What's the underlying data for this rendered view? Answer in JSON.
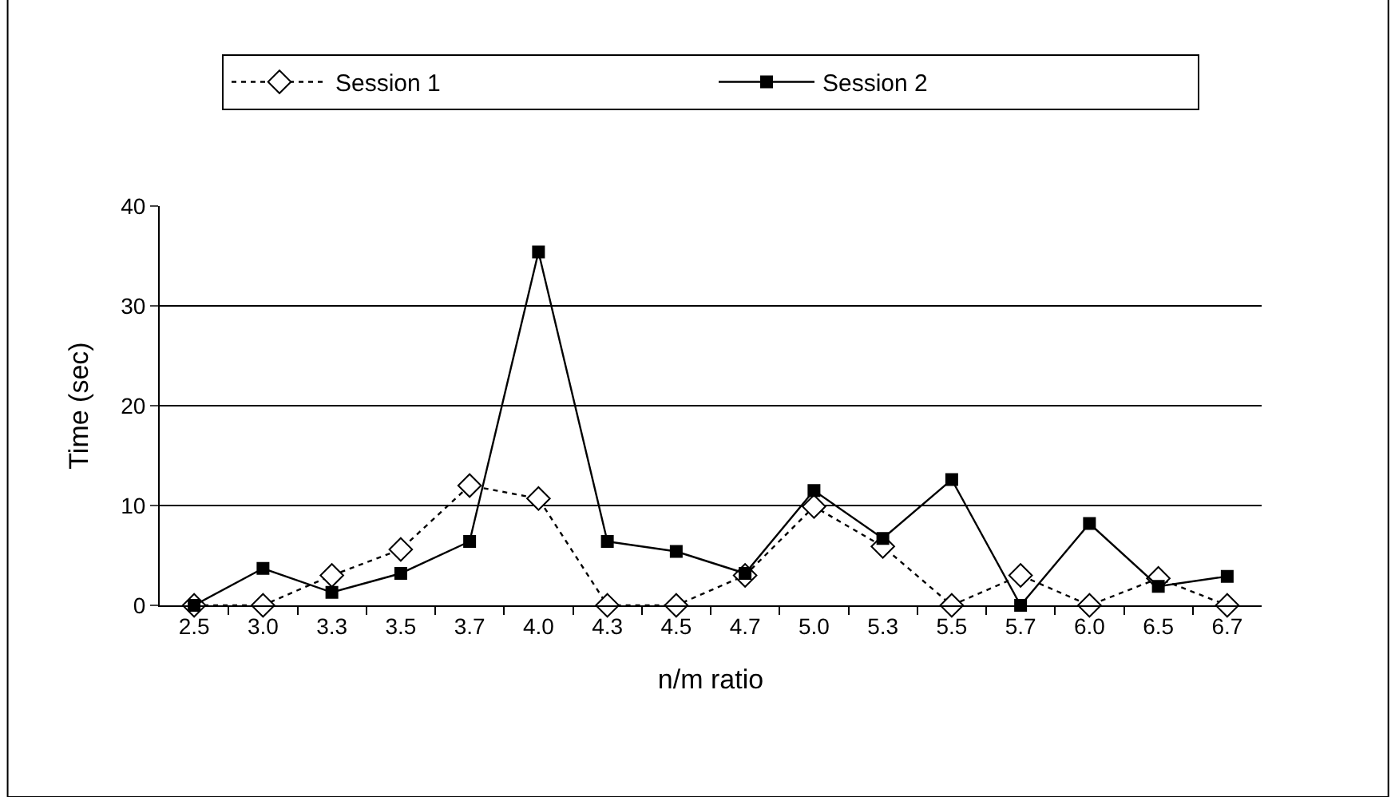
{
  "chart_data": {
    "type": "line",
    "xlabel": "n/m ratio",
    "ylabel": "Time (sec)",
    "categories": [
      "2.5",
      "3.0",
      "3.3",
      "3.5",
      "3.7",
      "4.0",
      "4.3",
      "4.5",
      "4.7",
      "5.0",
      "5.3",
      "5.5",
      "5.7",
      "6.0",
      "6.5",
      "6.7"
    ],
    "series": [
      {
        "name": "Session 1",
        "color": "#000000",
        "marker": "diamond",
        "line_style": "dotted",
        "values": [
          0,
          0,
          3.0,
          5.6,
          12.0,
          10.7,
          0,
          0,
          3.0,
          9.9,
          5.9,
          0,
          3.0,
          0,
          2.7,
          0
        ]
      },
      {
        "name": "Session 2",
        "color": "#000000",
        "marker": "square",
        "line_style": "solid",
        "values": [
          0,
          3.7,
          1.3,
          3.2,
          6.4,
          35.4,
          6.4,
          5.4,
          3.2,
          11.5,
          6.7,
          12.6,
          0,
          8.2,
          1.9,
          2.9
        ]
      }
    ],
    "ylim": [
      0,
      40
    ],
    "yticks": [
      0,
      10,
      20,
      30,
      40
    ],
    "grid": "y",
    "legend": "top"
  }
}
